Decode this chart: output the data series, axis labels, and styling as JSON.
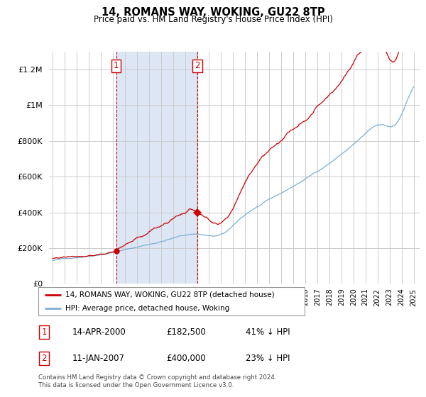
{
  "title": "14, ROMANS WAY, WOKING, GU22 8TP",
  "subtitle": "Price paid vs. HM Land Registry's House Price Index (HPI)",
  "hpi_label": "HPI: Average price, detached house, Woking",
  "price_label": "14, ROMANS WAY, WOKING, GU22 8TP (detached house)",
  "footer": "Contains HM Land Registry data © Crown copyright and database right 2024.\nThis data is licensed under the Open Government Licence v3.0.",
  "transaction1": {
    "label": "1",
    "date": "14-APR-2000",
    "price": "£182,500",
    "hpi_diff": "41% ↓ HPI"
  },
  "transaction2": {
    "label": "2",
    "date": "11-JAN-2007",
    "price": "£400,000",
    "hpi_diff": "23% ↓ HPI"
  },
  "hpi_color": "#7bafd4",
  "price_color": "#cc0000",
  "span_color": "#dce6f5",
  "vline_color": "#cc0000",
  "ylim": [
    0,
    1300000
  ],
  "yticks": [
    0,
    200000,
    400000,
    600000,
    800000,
    1000000,
    1200000
  ],
  "xlim_start": 1994.7,
  "xlim_end": 2025.5,
  "t1_x": 2000.28,
  "t2_x": 2007.04,
  "t1_y": 182500,
  "t2_y": 400000
}
